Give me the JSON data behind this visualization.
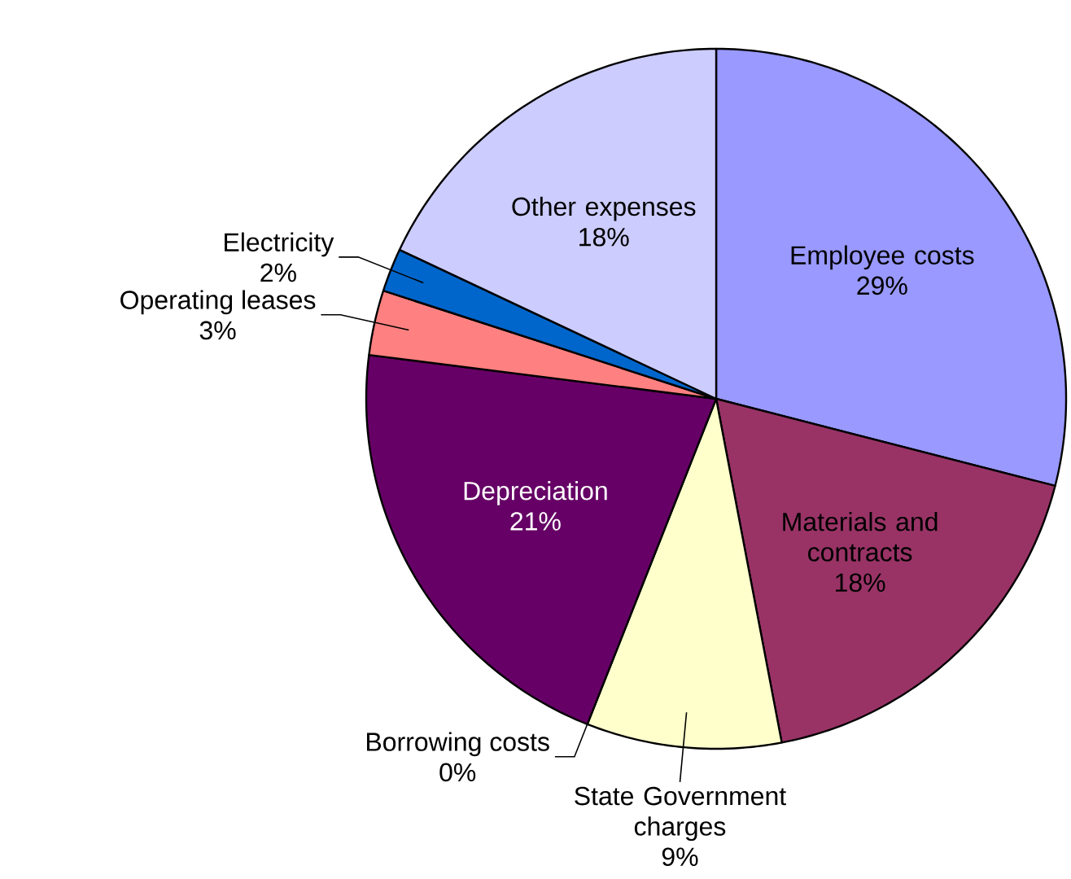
{
  "chart_data": {
    "type": "pie",
    "categories": [
      "Employee costs",
      "Materials and contracts",
      "State Government charges",
      "Borrowing costs",
      "Depreciation",
      "Operating leases",
      "Electricity",
      "Other expenses"
    ],
    "values": [
      29,
      18,
      9,
      0,
      21,
      3,
      2,
      18
    ],
    "value_labels": [
      "29%",
      "18%",
      "9%",
      "0%",
      "21%",
      "3%",
      "2%",
      "18%"
    ],
    "colors": [
      "#9999ff",
      "#993366",
      "#ffffcc",
      null,
      "#660066",
      "#ff8080",
      "#0066cc",
      "#ccccff"
    ]
  }
}
